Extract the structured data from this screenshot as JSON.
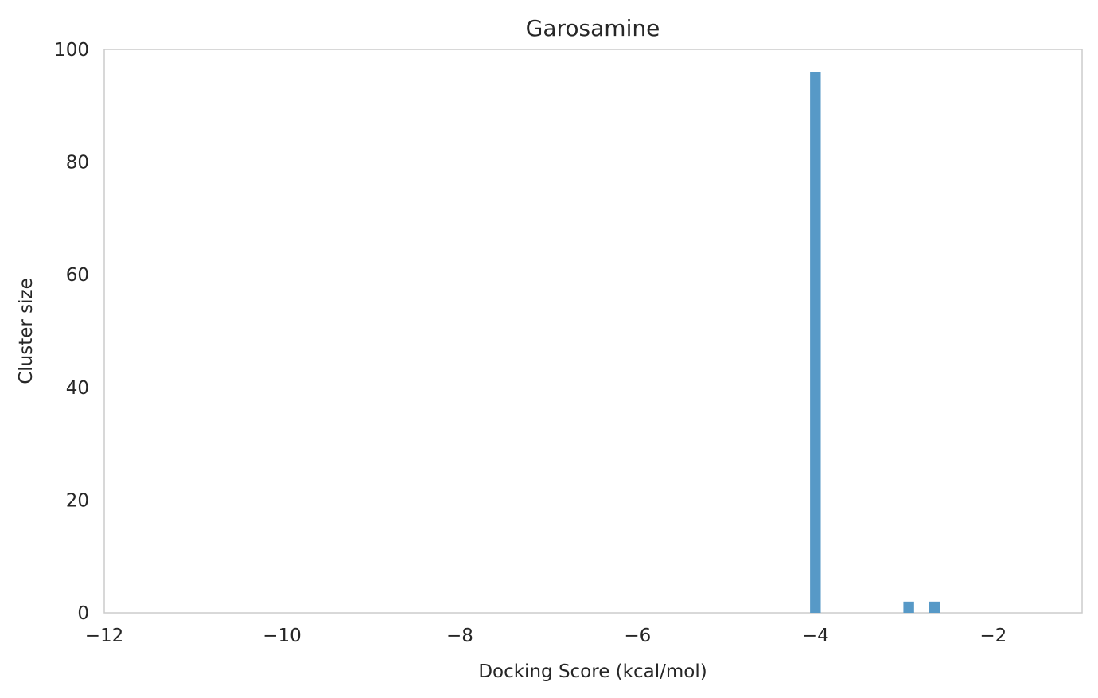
{
  "chart_data": {
    "type": "bar",
    "title": "Garosamine",
    "xlabel": "Docking Score (kcal/mol)",
    "ylabel": "Cluster size",
    "xlim": [
      -12,
      -1.0
    ],
    "ylim": [
      0,
      100
    ],
    "xticks": [
      -12,
      -10,
      -8,
      -6,
      -4,
      -2
    ],
    "xtick_labels": [
      "−12",
      "−10",
      "−8",
      "−6",
      "−4",
      "−2"
    ],
    "yticks": [
      0,
      20,
      40,
      60,
      80,
      100
    ],
    "ytick_labels": [
      "0",
      "20",
      "40",
      "60",
      "80",
      "100"
    ],
    "bar_width": 0.12,
    "bars": [
      {
        "x": -4.0,
        "value": 96
      },
      {
        "x": -2.95,
        "value": 2
      },
      {
        "x": -2.66,
        "value": 2
      }
    ],
    "bar_color": "#5799c7",
    "grid": false
  }
}
